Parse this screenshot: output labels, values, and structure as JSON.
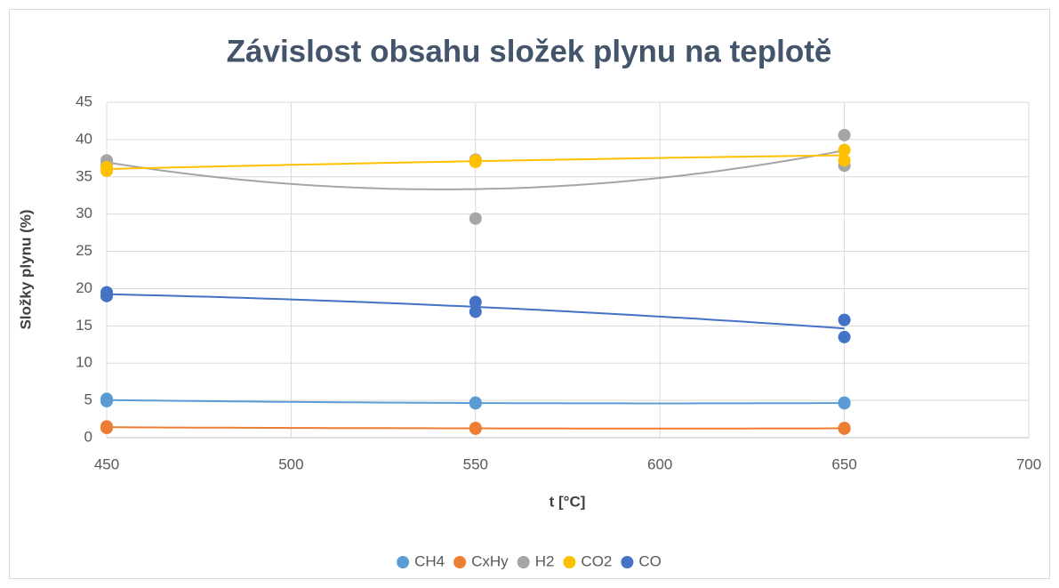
{
  "chart_data": {
    "type": "scatter",
    "title": "Závislost obsahu složek plynu na teplotě",
    "x_label": "t [°C]",
    "y_label": "Složky plynu (%)",
    "xlim": [
      450,
      700
    ],
    "xticks": [
      450,
      500,
      550,
      600,
      650,
      700
    ],
    "ylim": [
      0,
      45
    ],
    "yticks": [
      0,
      5,
      10,
      15,
      20,
      25,
      30,
      35,
      40,
      45
    ],
    "grid": true,
    "legend": "bottom",
    "trendline_order": 2,
    "series": [
      {
        "name": "CH4",
        "color": "#5b9bd5",
        "x": [
          450,
          450,
          550,
          550,
          650,
          650
        ],
        "values": [
          5.2,
          4.9,
          4.6,
          4.7,
          4.6,
          4.7
        ]
      },
      {
        "name": "CxHy",
        "color": "#ed7d31",
        "x": [
          450,
          450,
          550,
          550,
          650,
          650
        ],
        "values": [
          1.5,
          1.3,
          1.2,
          1.3,
          1.2,
          1.3
        ]
      },
      {
        "name": "H2",
        "color": "#a5a5a5",
        "x": [
          450,
          450,
          550,
          550,
          650,
          650
        ],
        "values": [
          37.2,
          36.7,
          37.3,
          29.4,
          40.6,
          36.5
        ]
      },
      {
        "name": "CO2",
        "color": "#ffc000",
        "x": [
          450,
          450,
          550,
          550,
          650,
          650
        ],
        "values": [
          36.3,
          35.8,
          37.2,
          37.0,
          38.6,
          37.2
        ]
      },
      {
        "name": "CO",
        "color": "#4472c4",
        "x": [
          450,
          450,
          550,
          550,
          650,
          650
        ],
        "values": [
          19.5,
          19.0,
          18.2,
          16.9,
          15.8,
          13.5
        ]
      }
    ]
  }
}
